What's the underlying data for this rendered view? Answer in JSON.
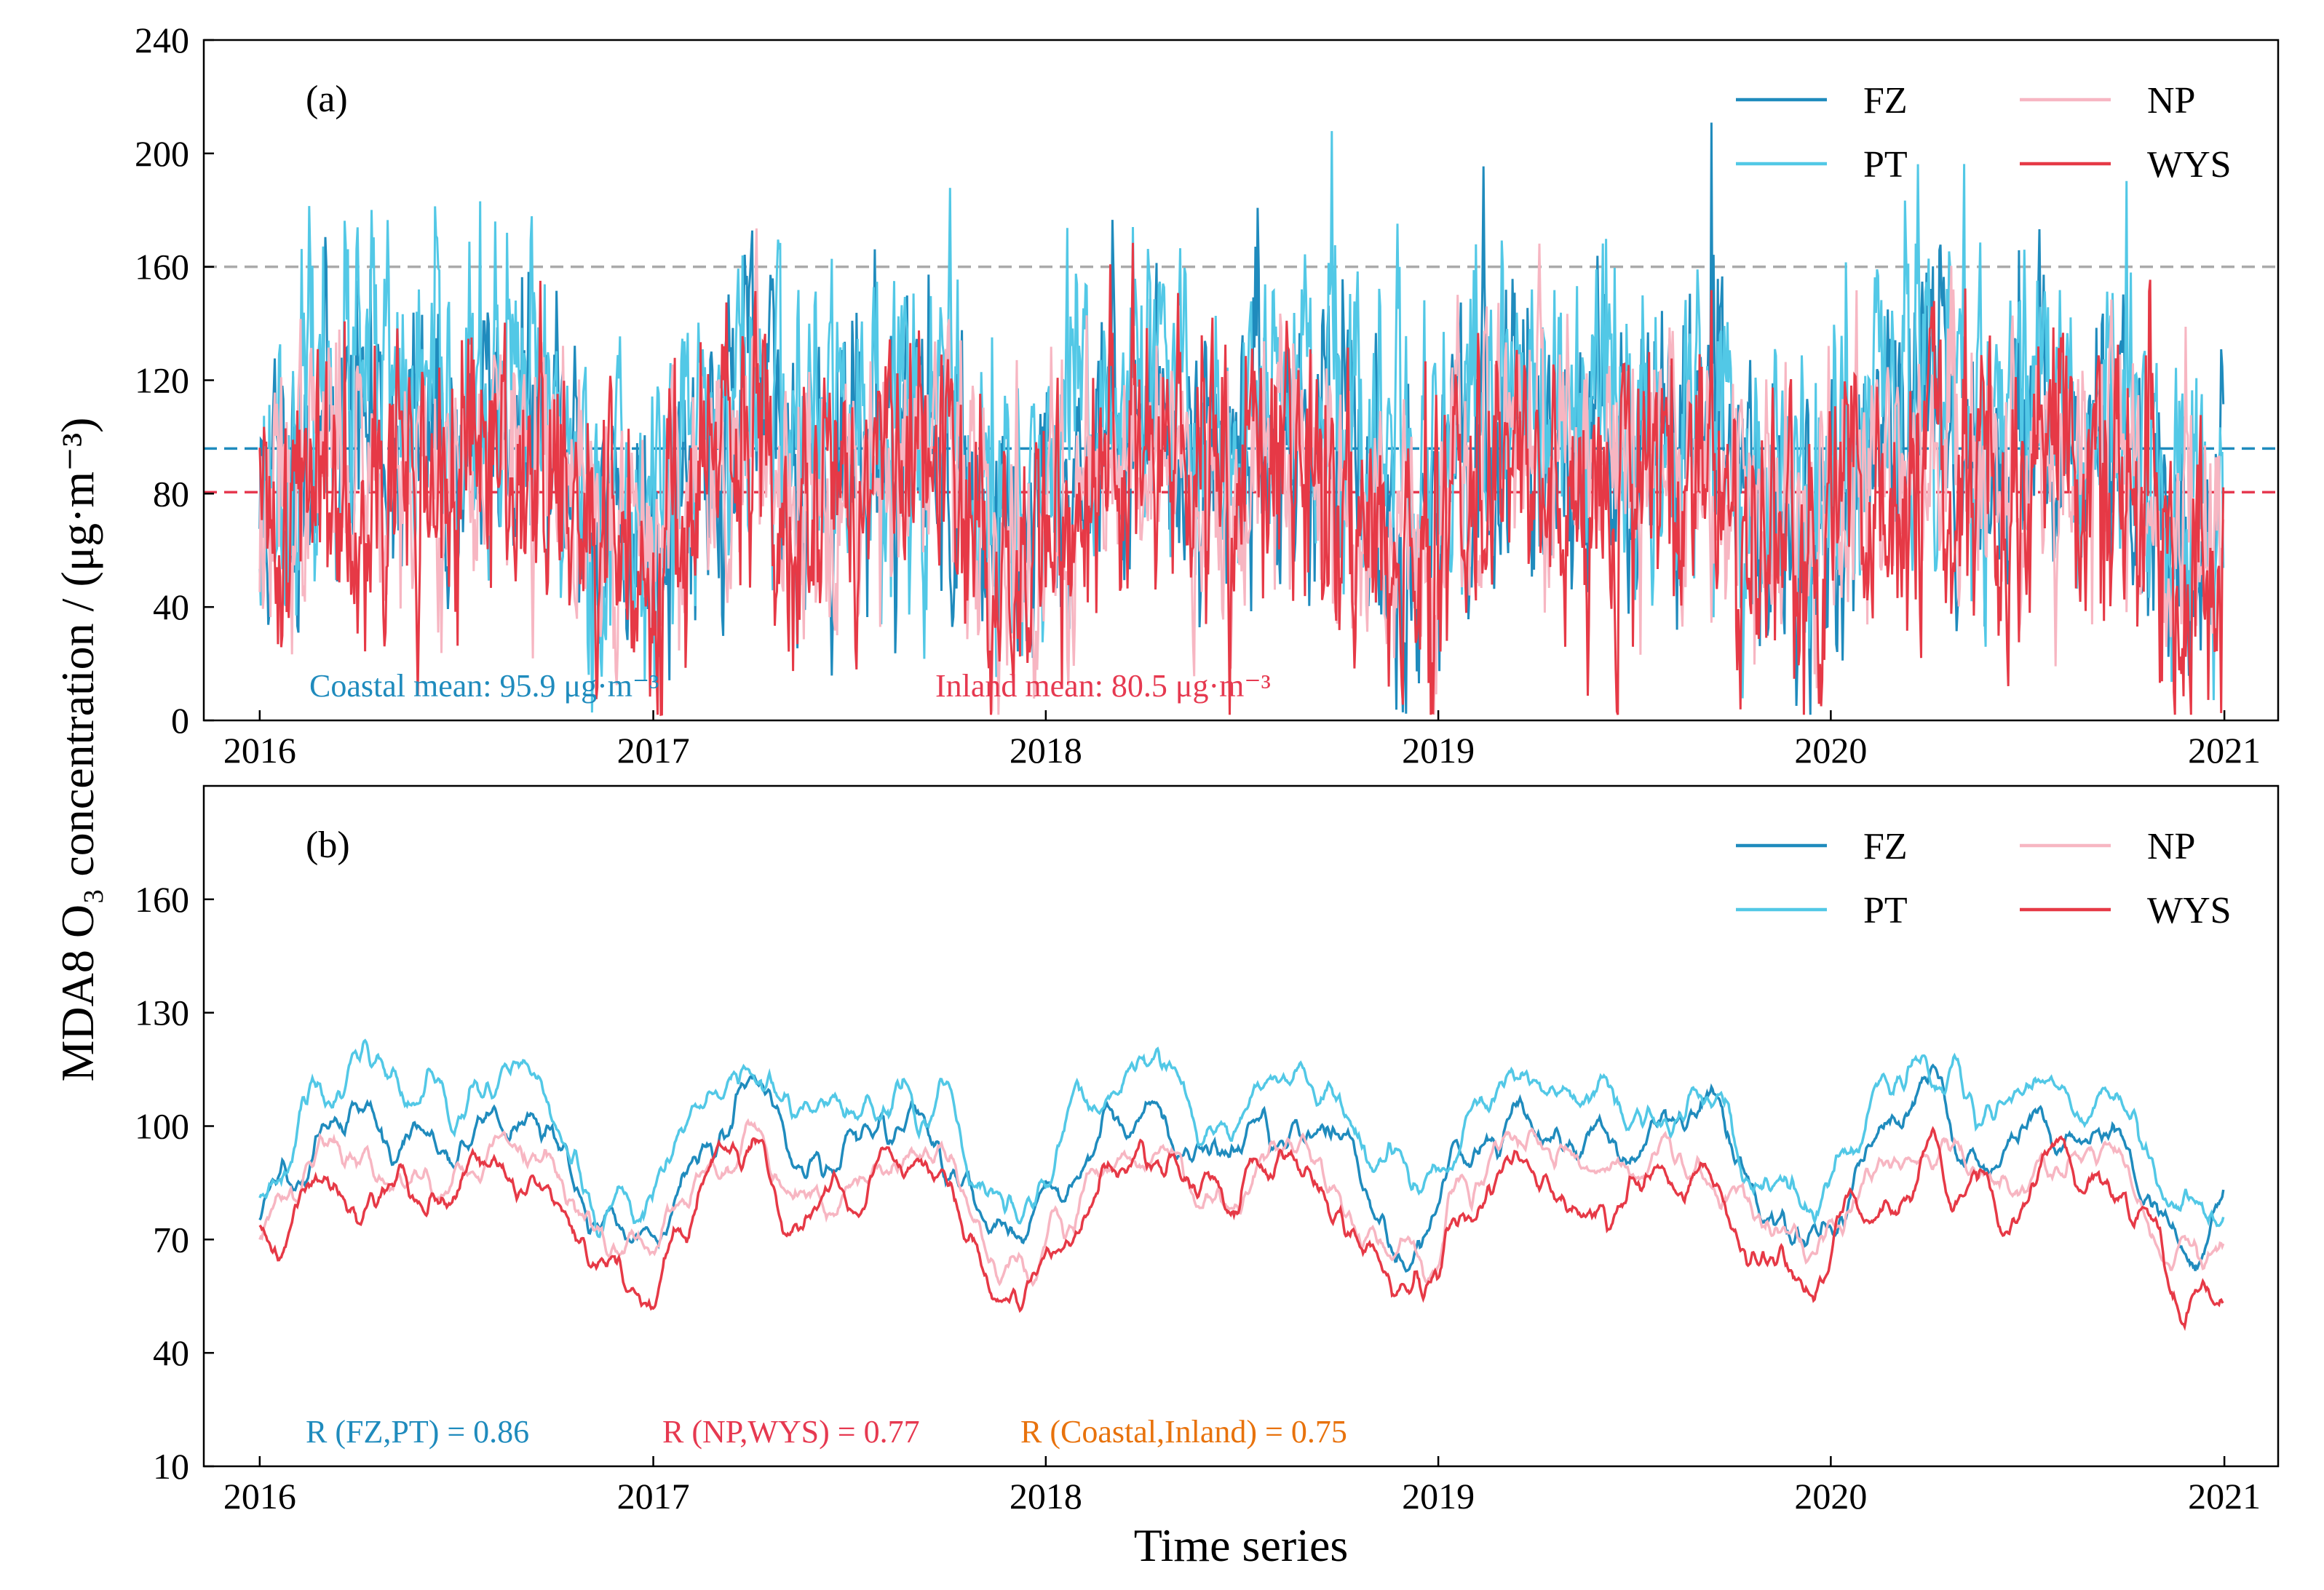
{
  "figure": {
    "ylabel": "MDA8 O₃ concentration / (μg·m⁻³)",
    "xlabel": "Time series"
  },
  "colors": {
    "FZ": "#1f8bbd",
    "PT": "#52c8e6",
    "NP": "#f7b6c2",
    "WYS": "#e63946",
    "threshold": "#aaaaaa",
    "coastal": "#1f8bbd",
    "inland": "#e63950",
    "orange": "#e8720c"
  },
  "chart_data": [
    {
      "type": "line",
      "panel_label": "(a)",
      "x_range": [
        "2016-01-01",
        "2020-12-31"
      ],
      "xlim": [
        "2015-11-10",
        "2021-02-20"
      ],
      "x_ticks": [
        "2016",
        "2017",
        "2018",
        "2019",
        "2020",
        "2021"
      ],
      "ylim": [
        0,
        240
      ],
      "y_ticks": [
        0,
        40,
        80,
        120,
        160,
        200,
        240
      ],
      "series": [
        {
          "name": "FZ",
          "mean": 92,
          "amp": 22,
          "noise": 22,
          "seed": 11
        },
        {
          "name": "PT",
          "mean": 100,
          "amp": 24,
          "noise": 24,
          "seed": 23
        },
        {
          "name": "NP",
          "mean": 84,
          "amp": 20,
          "noise": 20,
          "seed": 37
        },
        {
          "name": "WYS",
          "mean": 78,
          "amp": 22,
          "noise": 22,
          "seed": 41
        }
      ],
      "reference_lines": [
        {
          "y": 160,
          "style": "dashed",
          "color_key": "threshold"
        },
        {
          "y": 95.9,
          "style": "dashed",
          "color_key": "coastal"
        },
        {
          "y": 80.5,
          "style": "dashed",
          "color_key": "inland"
        }
      ],
      "annotations": [
        {
          "text": "Coastal mean: 95.9 μg·m⁻³",
          "color_key": "coastal"
        },
        {
          "text": "Inland mean: 80.5 μg·m⁻³",
          "color_key": "inland"
        }
      ],
      "legend": {
        "placement": "top-right",
        "columns": 2,
        "entries": [
          "FZ",
          "PT",
          "NP",
          "WYS"
        ]
      }
    },
    {
      "type": "line",
      "panel_label": "(b)",
      "x_range": [
        "2016-01-01",
        "2020-12-31"
      ],
      "xlim": [
        "2015-11-10",
        "2021-02-20"
      ],
      "x_ticks": [
        "2016",
        "2017",
        "2018",
        "2019",
        "2020",
        "2021"
      ],
      "ylim": [
        10,
        190
      ],
      "y_ticks": [
        10,
        40,
        70,
        100,
        130,
        160
      ],
      "series": [
        {
          "name": "FZ",
          "mean": 92,
          "amp": 18,
          "noise": 10,
          "seed": 11
        },
        {
          "name": "PT",
          "mean": 100,
          "amp": 20,
          "noise": 10,
          "seed": 23
        },
        {
          "name": "NP",
          "mean": 84,
          "amp": 17,
          "noise": 9,
          "seed": 37
        },
        {
          "name": "WYS",
          "mean": 78,
          "amp": 19,
          "noise": 10,
          "seed": 41
        }
      ],
      "annotations": [
        {
          "text": "R (FZ,PT) = 0.86",
          "color_key": "coastal"
        },
        {
          "text": "R (NP,WYS) = 0.77",
          "color_key": "inland"
        },
        {
          "text": "R (Coastal,Inland) = 0.75",
          "color_key": "orange"
        }
      ],
      "legend": {
        "placement": "top-right",
        "columns": 2,
        "entries": [
          "FZ",
          "PT",
          "NP",
          "WYS"
        ]
      }
    }
  ]
}
